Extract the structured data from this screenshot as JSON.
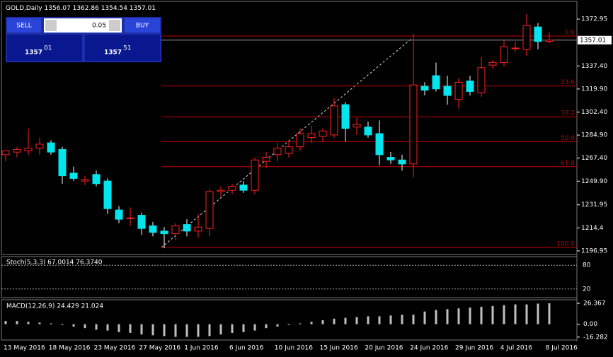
{
  "header": {
    "symbol": "GOLD,Daily"
  },
  "trade_panel": {
    "sell": "SELL",
    "buy": "BUY",
    "lot": "0.05",
    "sell_major": "1357",
    "sell_minor": "01",
    "buy_major": "1357",
    "buy_minor": "51"
  },
  "chart_data": {
    "type": "candlestick",
    "ylim": [
      1195.3,
      1386.4
    ],
    "yticks": [
      {
        "value": 1372.95,
        "label": "1372.95"
      },
      {
        "value": 1337.4,
        "label": "1337.40"
      },
      {
        "value": 1319.9,
        "label": "1319.90"
      },
      {
        "value": 1302.4,
        "label": "1302.40"
      },
      {
        "value": 1284.9,
        "label": "1284.90"
      },
      {
        "value": 1267.4,
        "label": "1267.40"
      },
      {
        "value": 1249.9,
        "label": "1249.90"
      },
      1231.95,
      1214.4,
      1196.95
    ],
    "current_price": 1357.01,
    "fibo": [
      {
        "label": "0.0",
        "value": 1360.1
      },
      {
        "label": "23.6",
        "value": 1322.2
      },
      {
        "label": "38.2",
        "value": 1298.8
      },
      {
        "label": "50.0",
        "value": 1279.9
      },
      {
        "label": "61.8",
        "value": 1260.9
      },
      {
        "label": "100.0",
        "value": 1199.6
      }
    ],
    "open": [
      1270,
      1272,
      1273,
      1275,
      1279,
      1274,
      1256,
      1250,
      1255,
      1250,
      1228,
      1222,
      1224,
      1216,
      1212,
      1210,
      1217,
      1212,
      1214,
      1242,
      1243,
      1247,
      1243,
      1265,
      1270,
      1271,
      1276,
      1283,
      1284,
      1285,
      1308,
      1291,
      1291,
      1286,
      1268,
      1266,
      1263,
      1322,
      1330,
      1322,
      1312,
      1326,
      1317,
      1338,
      1340,
      1351,
      1350,
      1367,
      1356.07
    ],
    "high": [
      1273,
      1276,
      1290,
      1283,
      1281,
      1276,
      1261,
      1254,
      1258,
      1252,
      1231,
      1230,
      1226,
      1219,
      1215,
      1218,
      1221,
      1225,
      1244,
      1246,
      1248,
      1250,
      1268,
      1272,
      1279,
      1280,
      1290,
      1292,
      1290,
      1313,
      1310,
      1298,
      1295,
      1296,
      1272,
      1270,
      1362,
      1325,
      1340,
      1330,
      1328,
      1330,
      1344,
      1342,
      1357,
      1356,
      1377,
      1370,
      1362.86
    ],
    "low": [
      1265,
      1268,
      1270,
      1270,
      1270,
      1248,
      1250,
      1247,
      1246,
      1225,
      1218,
      1216,
      1209,
      1208,
      1199,
      1205,
      1208,
      1207,
      1208,
      1238,
      1240,
      1241,
      1240,
      1260,
      1265,
      1268,
      1273,
      1279,
      1280,
      1283,
      1280,
      1285,
      1283,
      1262,
      1263,
      1258,
      1253,
      1315,
      1318,
      1308,
      1305,
      1315,
      1314,
      1335,
      1337,
      1348,
      1345,
      1350,
      1354.54
    ],
    "close": [
      1273,
      1274,
      1275,
      1278,
      1272,
      1254,
      1252,
      1251,
      1248,
      1229,
      1221,
      1222,
      1214,
      1211,
      1210,
      1216,
      1212,
      1215,
      1242,
      1243,
      1246,
      1243,
      1266,
      1268,
      1275,
      1276,
      1286,
      1286,
      1288,
      1307,
      1290,
      1293,
      1285,
      1270,
      1266,
      1263,
      1323,
      1319,
      1320,
      1315,
      1325,
      1318,
      1336,
      1340,
      1352,
      1351,
      1368,
      1356,
      1357.01
    ],
    "dates": [
      "13 May 2016",
      "18 May 2016",
      "23 May 2016",
      "27 May 2016",
      "1 Jun 2016",
      "6 Jun 2016",
      "10 Jun 2016",
      "15 Jun 2016",
      "20 Jun 2016",
      "24 Jun 2016",
      "29 Jun 2016",
      "4 Jul 2016",
      "8 Jul 2016"
    ],
    "stoch": {
      "label": "Stoch(5,3,3) 67.0014 76.3740",
      "ylim": [
        0,
        100
      ],
      "yticks": [
        80,
        20
      ]
    },
    "macd": {
      "label": "MACD(12,26,9) 24.429 21.024",
      "ylim": [
        -20,
        30
      ],
      "yticks": [
        {
          "value": 26.367,
          "label": "26.367"
        },
        {
          "value": 0,
          "label": "0.00"
        },
        {
          "value": -16.282,
          "label": "-16.282"
        }
      ],
      "values": [
        4,
        4,
        3,
        2,
        1,
        -1,
        -3,
        -5,
        -7,
        -8,
        -10,
        -11,
        -13,
        -14,
        -15,
        -16,
        -16,
        -16,
        -15,
        -13,
        -11,
        -10,
        -8,
        -5,
        -3,
        -1,
        1,
        3,
        5,
        7,
        8,
        9,
        10,
        10,
        11,
        12,
        12,
        16,
        18,
        19,
        20,
        21,
        22,
        23,
        24,
        25,
        25,
        26,
        26.367
      ]
    }
  }
}
